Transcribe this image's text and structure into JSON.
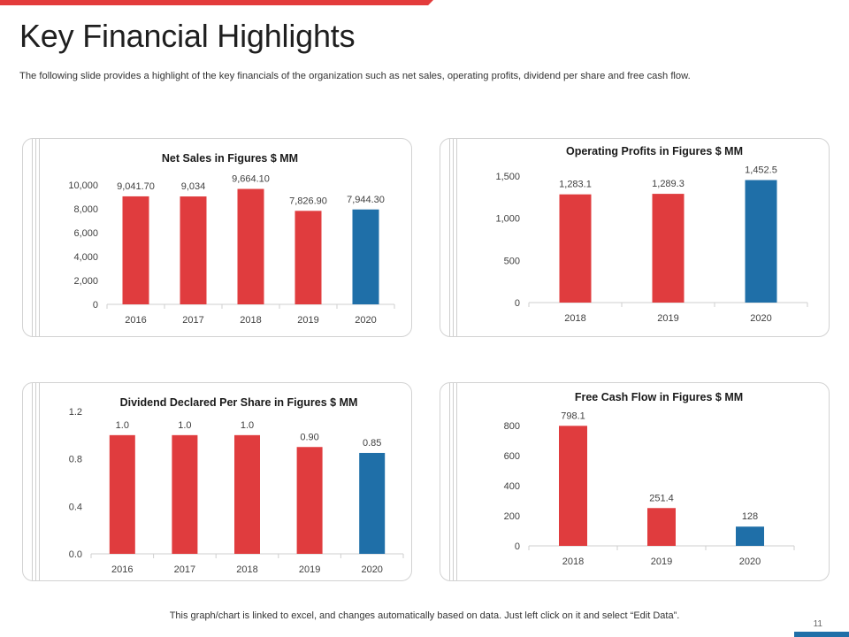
{
  "slide": {
    "title": "Key Financial Highlights",
    "subtitle": "The following slide provides a highlight of the key financials of the organization such as net sales, operating profits, dividend per share and free cash flow.",
    "footer": "This graph/chart is linked to excel, and changes automatically based on data. Just left click on it and select “Edit Data”.",
    "page_number": "11"
  },
  "colors": {
    "red": "#e03c3e",
    "blue": "#1f6fa8",
    "accent_bar": "#e33b3b"
  },
  "chart_data": [
    {
      "type": "bar",
      "title": "Net Sales in Figures $ MM",
      "categories": [
        "2016",
        "2017",
        "2018",
        "2019",
        "2020"
      ],
      "values": [
        9041.7,
        9034,
        9664.1,
        7826.9,
        7944.3
      ],
      "data_labels": [
        "9,041.70",
        "9,034",
        "9,664.10",
        "7,826.90",
        "7,944.30"
      ],
      "highlight_index": 4,
      "ylim": [
        0,
        10000
      ],
      "yticks": [
        0,
        2000,
        4000,
        6000,
        8000,
        10000
      ],
      "ytick_labels": [
        "0",
        "2,000",
        "4,000",
        "6,000",
        "8,000",
        "10,000"
      ],
      "xlabel": "",
      "ylabel": ""
    },
    {
      "type": "bar",
      "title": "Operating Profits in Figures $ MM",
      "categories": [
        "2018",
        "2019",
        "2020"
      ],
      "values": [
        1283.1,
        1289.3,
        1452.5
      ],
      "data_labels": [
        "1,283.1",
        "1,289.3",
        "1,452.5"
      ],
      "highlight_index": 2,
      "ylim": [
        0,
        1500
      ],
      "yticks": [
        0,
        500,
        1000,
        1500
      ],
      "ytick_labels": [
        "0",
        "500",
        "1,000",
        "1,500"
      ],
      "xlabel": "",
      "ylabel": ""
    },
    {
      "type": "bar",
      "title": "Dividend Declared Per Share in Figures $ MM",
      "categories": [
        "2016",
        "2017",
        "2018",
        "2019",
        "2020"
      ],
      "values": [
        1.0,
        1.0,
        1.0,
        0.9,
        0.85
      ],
      "data_labels": [
        "1.0",
        "1.0",
        "1.0",
        "0.90",
        "0.85"
      ],
      "highlight_index": 4,
      "ylim": [
        0,
        1.2
      ],
      "yticks": [
        0,
        0.4,
        0.8,
        1.2
      ],
      "ytick_labels": [
        "0.0",
        "0.4",
        "0.8",
        "1.2"
      ],
      "xlabel": "",
      "ylabel": ""
    },
    {
      "type": "bar",
      "title": "Free Cash Flow in Figures $ MM",
      "categories": [
        "2018",
        "2019",
        "2020"
      ],
      "values": [
        798.1,
        251.4,
        128
      ],
      "data_labels": [
        "798.1",
        "251.4",
        "128"
      ],
      "highlight_index": 2,
      "ylim": [
        0,
        800
      ],
      "yticks": [
        0,
        200,
        400,
        600,
        800
      ],
      "ytick_labels": [
        "0",
        "200",
        "400",
        "600",
        "800"
      ],
      "xlabel": "",
      "ylabel": ""
    }
  ]
}
